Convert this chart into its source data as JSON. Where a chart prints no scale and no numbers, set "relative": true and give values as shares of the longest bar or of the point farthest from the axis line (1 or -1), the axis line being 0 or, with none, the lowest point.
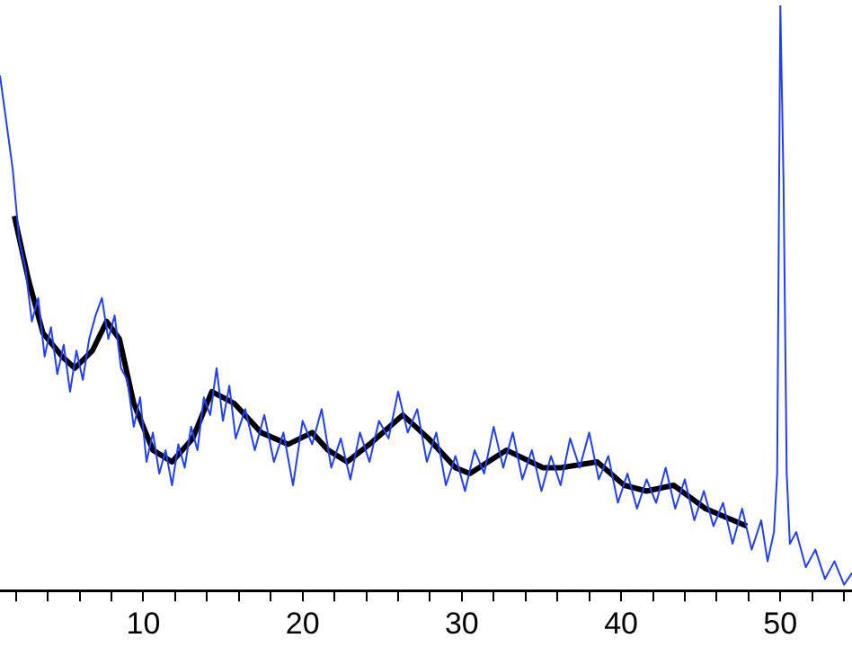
{
  "chart_data": {
    "type": "line",
    "relative": true,
    "grid": false,
    "legend": false,
    "marker": "none",
    "line_style": "solid",
    "xlim": [
      1,
      54.5
    ],
    "xticks": [
      {
        "value": 2,
        "label": null
      },
      {
        "value": 4,
        "label": null
      },
      {
        "value": 6,
        "label": null
      },
      {
        "value": 8,
        "label": null
      },
      10,
      {
        "value": 12,
        "label": null
      },
      {
        "value": 14,
        "label": null
      },
      {
        "value": 16,
        "label": null
      },
      {
        "value": 18,
        "label": null
      },
      20,
      {
        "value": 22,
        "label": null
      },
      {
        "value": 24,
        "label": null
      },
      {
        "value": 26,
        "label": null
      },
      {
        "value": 28,
        "label": null
      },
      30,
      {
        "value": 32,
        "label": null
      },
      {
        "value": 34,
        "label": null
      },
      {
        "value": 36,
        "label": null
      },
      {
        "value": 38,
        "label": null
      },
      40,
      {
        "value": 42,
        "label": null
      },
      {
        "value": 44,
        "label": null
      },
      {
        "value": 46,
        "label": null
      },
      {
        "value": 48,
        "label": null
      },
      50,
      {
        "value": 52,
        "label": null
      },
      {
        "value": 54,
        "label": null
      }
    ],
    "series": [
      {
        "color": "#1f3fff",
        "x": [
          1,
          1.4,
          1.8,
          2.2,
          2.6,
          3,
          3.4,
          3.8,
          4.2,
          4.6,
          5,
          5.4,
          5.8,
          6.2,
          6.6,
          7,
          7.4,
          7.8,
          8.2,
          8.6,
          9,
          9.4,
          9.8,
          10.2,
          10.6,
          11,
          11.4,
          11.8,
          12.2,
          12.6,
          13,
          13.4,
          13.8,
          14.2,
          14.6,
          15,
          15.4,
          15.8,
          16.4,
          17,
          17.6,
          18.2,
          18.8,
          19.4,
          20,
          20.6,
          21.2,
          21.8,
          22.4,
          23,
          23.6,
          24.2,
          24.8,
          25.4,
          26,
          26.6,
          27.2,
          27.8,
          28.4,
          29,
          29.6,
          30.2,
          30.8,
          31.4,
          32,
          32.6,
          33.2,
          33.8,
          34.4,
          35,
          35.6,
          36.2,
          36.8,
          37.4,
          38,
          38.6,
          39.2,
          39.8,
          40.4,
          41,
          41.6,
          42.2,
          42.8,
          43.4,
          44,
          44.6,
          45.2,
          45.8,
          46.4,
          47,
          47.6,
          48.2,
          48.8,
          49.2,
          49.6,
          49.8,
          50,
          50.2,
          50.4,
          50.6,
          51,
          51.6,
          52.2,
          52.8,
          53.4,
          54,
          54.5
        ],
        "values": [
          0.88,
          0.8,
          0.72,
          0.6,
          0.55,
          0.46,
          0.5,
          0.4,
          0.45,
          0.37,
          0.42,
          0.34,
          0.41,
          0.36,
          0.43,
          0.47,
          0.5,
          0.43,
          0.47,
          0.38,
          0.36,
          0.28,
          0.33,
          0.22,
          0.27,
          0.2,
          0.24,
          0.18,
          0.25,
          0.21,
          0.28,
          0.24,
          0.33,
          0.3,
          0.38,
          0.29,
          0.35,
          0.26,
          0.31,
          0.24,
          0.3,
          0.22,
          0.27,
          0.18,
          0.29,
          0.25,
          0.31,
          0.21,
          0.26,
          0.19,
          0.27,
          0.22,
          0.29,
          0.26,
          0.34,
          0.27,
          0.31,
          0.22,
          0.27,
          0.18,
          0.23,
          0.17,
          0.24,
          0.2,
          0.28,
          0.21,
          0.27,
          0.19,
          0.24,
          0.17,
          0.23,
          0.18,
          0.26,
          0.21,
          0.27,
          0.19,
          0.23,
          0.15,
          0.2,
          0.14,
          0.19,
          0.15,
          0.21,
          0.14,
          0.19,
          0.12,
          0.17,
          0.11,
          0.15,
          0.08,
          0.14,
          0.07,
          0.12,
          0.05,
          0.1,
          0.2,
          1,
          0.7,
          0.2,
          0.08,
          0.1,
          0.04,
          0.07,
          0.02,
          0.05,
          0.01,
          0.03
        ]
      },
      {
        "color": "#000000",
        "x": [
          1.9,
          2.8,
          3.7,
          4.9,
          5.7,
          6.8,
          7.7,
          8.5,
          9.4,
          10.6,
          11.8,
          13.1,
          14.3,
          15.7,
          17.4,
          19.1,
          20.6,
          21.6,
          22.8,
          24.2,
          26.3,
          27.9,
          29.6,
          30.5,
          32.8,
          35.1,
          36.2,
          38.5,
          40.2,
          41.6,
          43.3,
          45.3,
          47.9
        ],
        "values": [
          0.64,
          0.53,
          0.44,
          0.4,
          0.38,
          0.41,
          0.46,
          0.43,
          0.32,
          0.24,
          0.22,
          0.26,
          0.34,
          0.32,
          0.27,
          0.25,
          0.27,
          0.24,
          0.22,
          0.25,
          0.3,
          0.26,
          0.21,
          0.2,
          0.24,
          0.21,
          0.21,
          0.22,
          0.18,
          0.17,
          0.18,
          0.14,
          0.11
        ]
      }
    ]
  }
}
